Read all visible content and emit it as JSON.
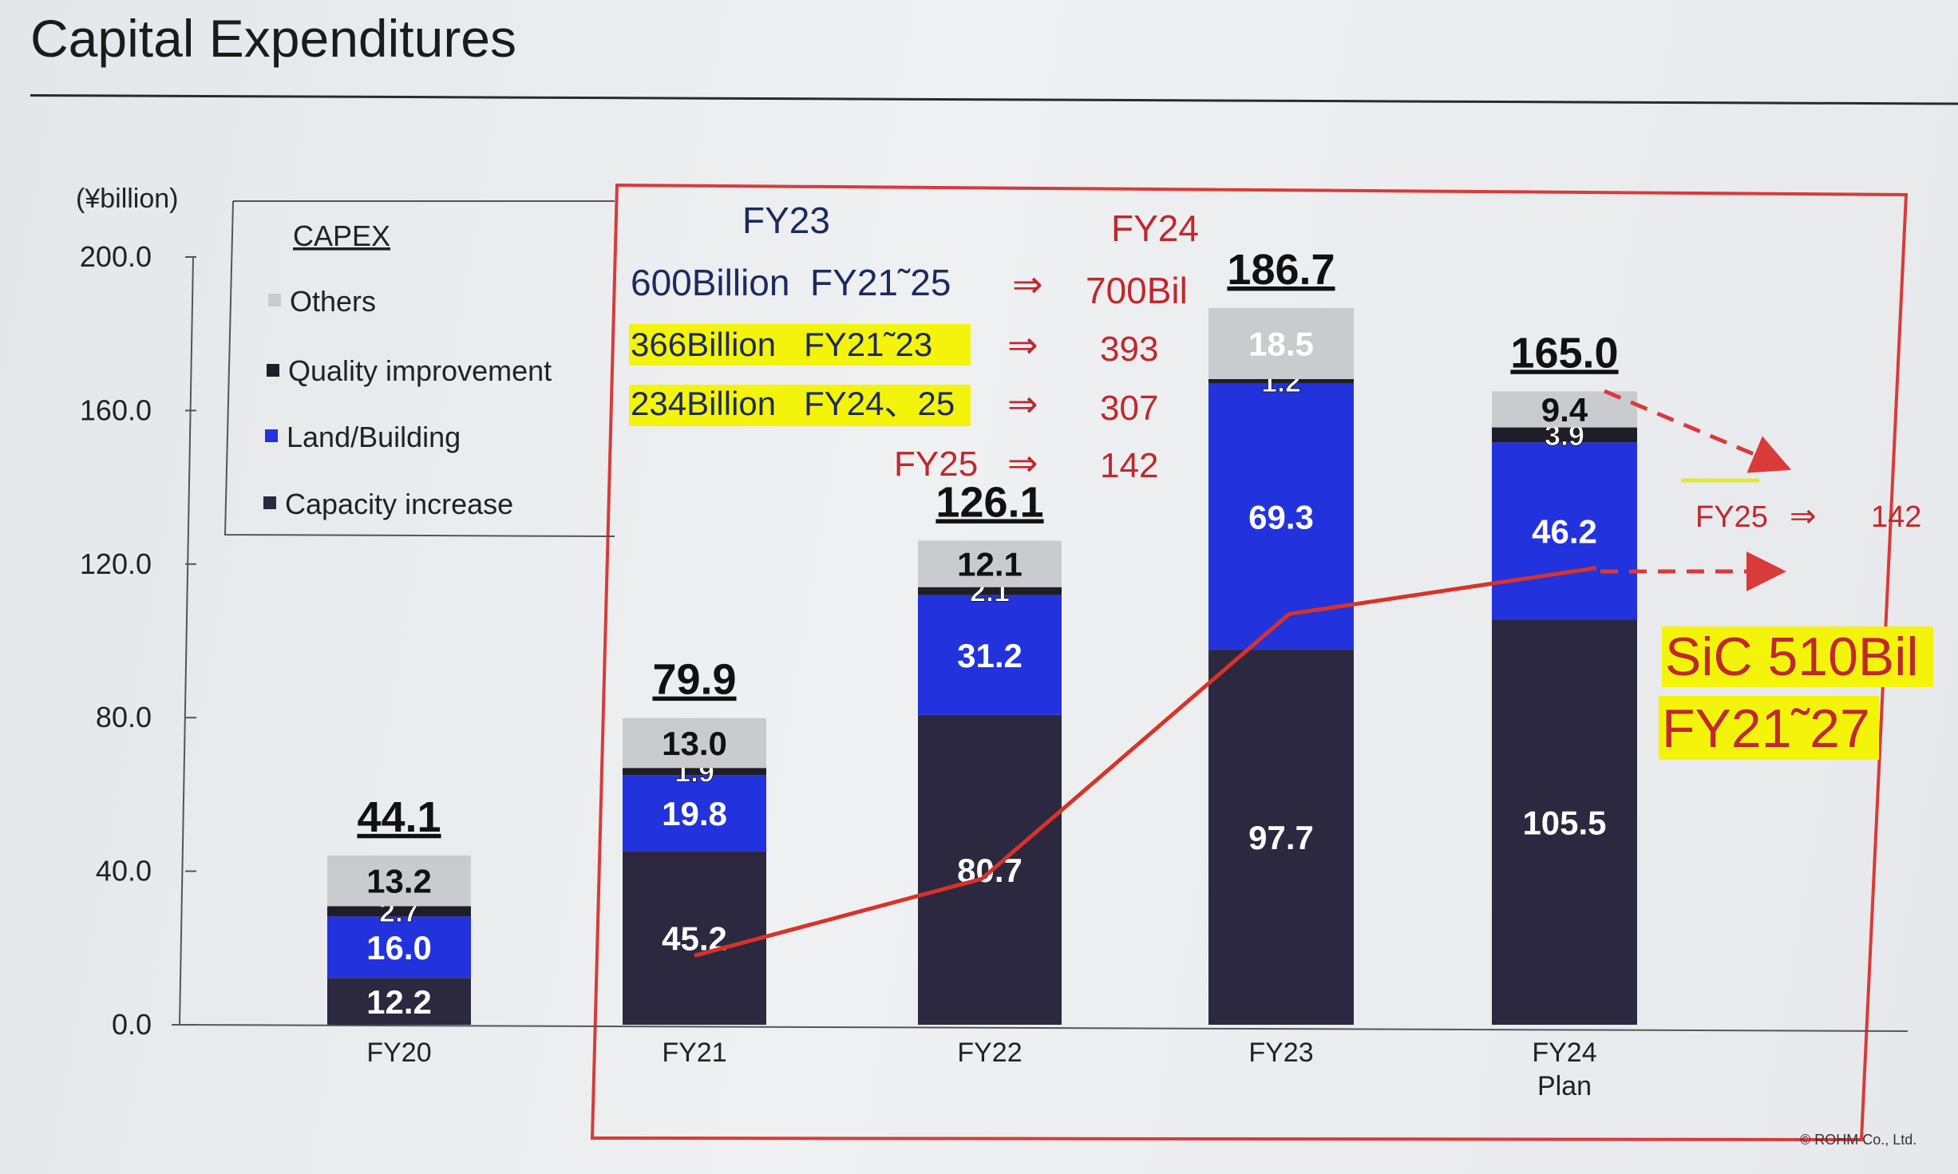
{
  "page": {
    "title": "Capital Expenditures",
    "copyright": "© ROHM Co., Ltd."
  },
  "colors": {
    "others": "#c9cbce",
    "quality": "#1e1e28",
    "land": "#2233dd",
    "capacity": "#2c2840",
    "highlight_box": "#d93a3a",
    "accent_red": "#c0282d",
    "annotation_blue": "#1c2a5e",
    "yellow": "#f4f40a"
  },
  "chart_data": {
    "type": "bar",
    "stacked": true,
    "ylabel": "(¥billion)",
    "ylim": [
      0,
      200
    ],
    "yticks": [
      "0.0",
      "40.0",
      "80.0",
      "120.0",
      "160.0",
      "200.0"
    ],
    "categories": [
      "FY20",
      "FY21",
      "FY22",
      "FY23",
      "FY24"
    ],
    "category_sublabels": [
      "",
      "",
      "",
      "",
      "Plan"
    ],
    "series": [
      {
        "name": "Capacity increase",
        "key": "capacity",
        "values": [
          12.2,
          45.2,
          80.7,
          97.7,
          105.5
        ]
      },
      {
        "name": "Land/Building",
        "key": "land",
        "values": [
          16.0,
          19.8,
          31.2,
          69.3,
          46.2
        ]
      },
      {
        "name": "Quality improvement",
        "key": "quality",
        "values": [
          2.7,
          1.9,
          2.1,
          1.2,
          3.9
        ]
      },
      {
        "name": "Others",
        "key": "others",
        "values": [
          13.2,
          13.0,
          12.1,
          18.5,
          9.4
        ]
      }
    ],
    "totals": [
      "44.1",
      "79.9",
      "126.1",
      "186.7",
      "165.0"
    ],
    "value_labels": {
      "capacity": [
        "12.2",
        "45.2",
        "80.7",
        "97.7",
        "105.5"
      ],
      "land": [
        "16.0",
        "19.8",
        "31.2",
        "69.3",
        "46.2"
      ],
      "quality": [
        "2.7",
        "1.9",
        "2.1",
        "1.2",
        "3.9"
      ],
      "others": [
        "13.2",
        "13.0",
        "12.1",
        "18.5",
        "9.4"
      ]
    },
    "legend": {
      "title": "CAPEX",
      "placement": "top-left",
      "items": [
        "Others",
        "Quality improvement",
        "Land/Building",
        "Capacity increase"
      ]
    },
    "sic_line": {
      "categories": [
        "FY21",
        "FY22",
        "FY23",
        "FY24"
      ],
      "values": [
        18,
        38,
        107,
        119
      ],
      "forecast_to": "FY25"
    }
  },
  "annotations": {
    "col_fy23": "FY23",
    "col_fy24": "FY24",
    "rows": [
      {
        "left": "600Billion  FY21˜25",
        "arrow": "⇒",
        "right": "700Bil",
        "highlight": false
      },
      {
        "left": "366Billion   FY21˜23",
        "arrow": "⇒",
        "right": "393",
        "highlight": true
      },
      {
        "left": "234Billion   FY24、25",
        "arrow": "⇒",
        "right": "307",
        "highlight": true
      },
      {
        "left": "FY25",
        "arrow": "⇒",
        "right": "142",
        "highlight": false
      }
    ],
    "forecast": {
      "label": "FY25",
      "arrow": "⇒",
      "value": "142"
    },
    "sic": {
      "line1": "SiC 510Bil",
      "line2": "FY21˜27"
    }
  }
}
